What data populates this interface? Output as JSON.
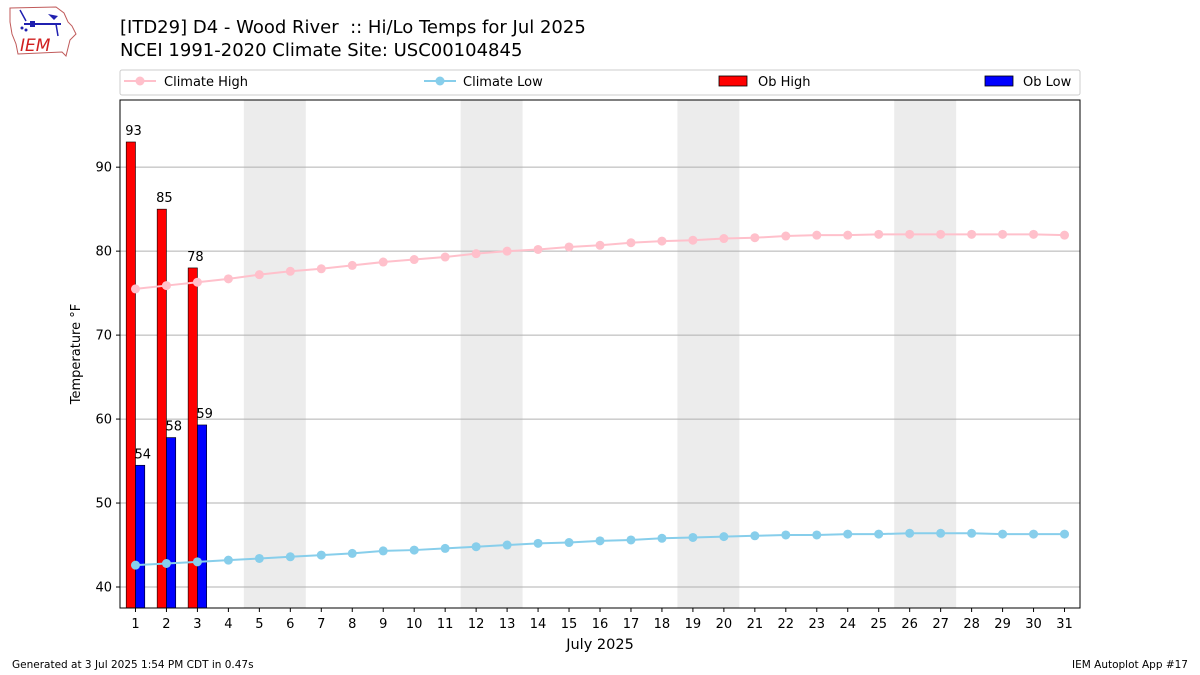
{
  "header": {
    "title_line1": "[ITD29] D4 - Wood River  :: Hi/Lo Temps for Jul 2025",
    "title_line2": "NCEI 1991-2020 Climate Site: USC00104845"
  },
  "logo": {
    "text": "IEM"
  },
  "footer": {
    "left": "Generated at 3 Jul 2025 1:54 PM CDT in 0.47s",
    "right": "IEM Autoplot App #17"
  },
  "chart_data": {
    "type": "bar",
    "xlabel": "July 2025",
    "ylabel": "Temperature °F",
    "ylim": [
      37.5,
      98
    ],
    "yticks": [
      40,
      50,
      60,
      70,
      80,
      90
    ],
    "grid": "horizontal",
    "legend": [
      "Climate High",
      "Climate Low",
      "Ob High",
      "Ob Low"
    ],
    "legend_position": "top",
    "categories": [
      1,
      2,
      3,
      4,
      5,
      6,
      7,
      8,
      9,
      10,
      11,
      12,
      13,
      14,
      15,
      16,
      17,
      18,
      19,
      20,
      21,
      22,
      23,
      24,
      25,
      26,
      27,
      28,
      29,
      30,
      31
    ],
    "weekend_shading": [
      [
        5,
        6
      ],
      [
        12,
        13
      ],
      [
        19,
        20
      ],
      [
        26,
        27
      ]
    ],
    "ob_high": {
      "name": "Ob High",
      "color": "#ff0000",
      "days": [
        1,
        2,
        3
      ],
      "values": [
        93,
        85,
        78
      ],
      "labels": [
        "93",
        "85",
        "78"
      ]
    },
    "ob_low": {
      "name": "Ob Low",
      "color": "#0000ff",
      "days": [
        1,
        2,
        3
      ],
      "values": [
        54.5,
        57.8,
        59.3
      ],
      "labels": [
        "54",
        "58",
        "59"
      ]
    },
    "climate_high": {
      "name": "Climate High",
      "color": "#ffc0cb",
      "values": [
        75.5,
        75.9,
        76.3,
        76.7,
        77.2,
        77.6,
        77.9,
        78.3,
        78.7,
        79.0,
        79.3,
        79.7,
        80.0,
        80.2,
        80.5,
        80.7,
        81.0,
        81.2,
        81.3,
        81.5,
        81.6,
        81.8,
        81.9,
        81.9,
        82.0,
        82.0,
        82.0,
        82.0,
        82.0,
        82.0,
        81.9
      ]
    },
    "climate_low": {
      "name": "Climate Low",
      "color": "#87ceeb",
      "values": [
        42.6,
        42.8,
        43.0,
        43.2,
        43.4,
        43.6,
        43.8,
        44.0,
        44.3,
        44.4,
        44.6,
        44.8,
        45.0,
        45.2,
        45.3,
        45.5,
        45.6,
        45.8,
        45.9,
        46.0,
        46.1,
        46.2,
        46.2,
        46.3,
        46.3,
        46.4,
        46.4,
        46.4,
        46.3,
        46.3,
        46.3
      ]
    }
  }
}
